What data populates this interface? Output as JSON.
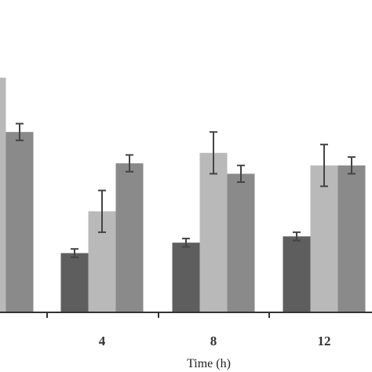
{
  "chart_data": {
    "type": "bar",
    "categories": [
      "",
      "4",
      "8",
      "12"
    ],
    "series": [
      {
        "color": "#5e5e5e",
        "values": [
          null,
          28,
          33,
          36
        ],
        "errors": [
          null,
          2,
          2,
          2
        ]
      },
      {
        "color": "#b9b9b9",
        "values": [
          112,
          48,
          76,
          70
        ],
        "errors": [
          null,
          10,
          10,
          10
        ]
      },
      {
        "color": "#8a8a8a",
        "values": [
          86,
          71,
          66,
          70
        ],
        "errors": [
          4,
          4,
          4,
          4
        ]
      }
    ],
    "xlabel": "Time (h)",
    "ylim": [
      0,
      112
    ],
    "grid": false,
    "legend": "none"
  }
}
